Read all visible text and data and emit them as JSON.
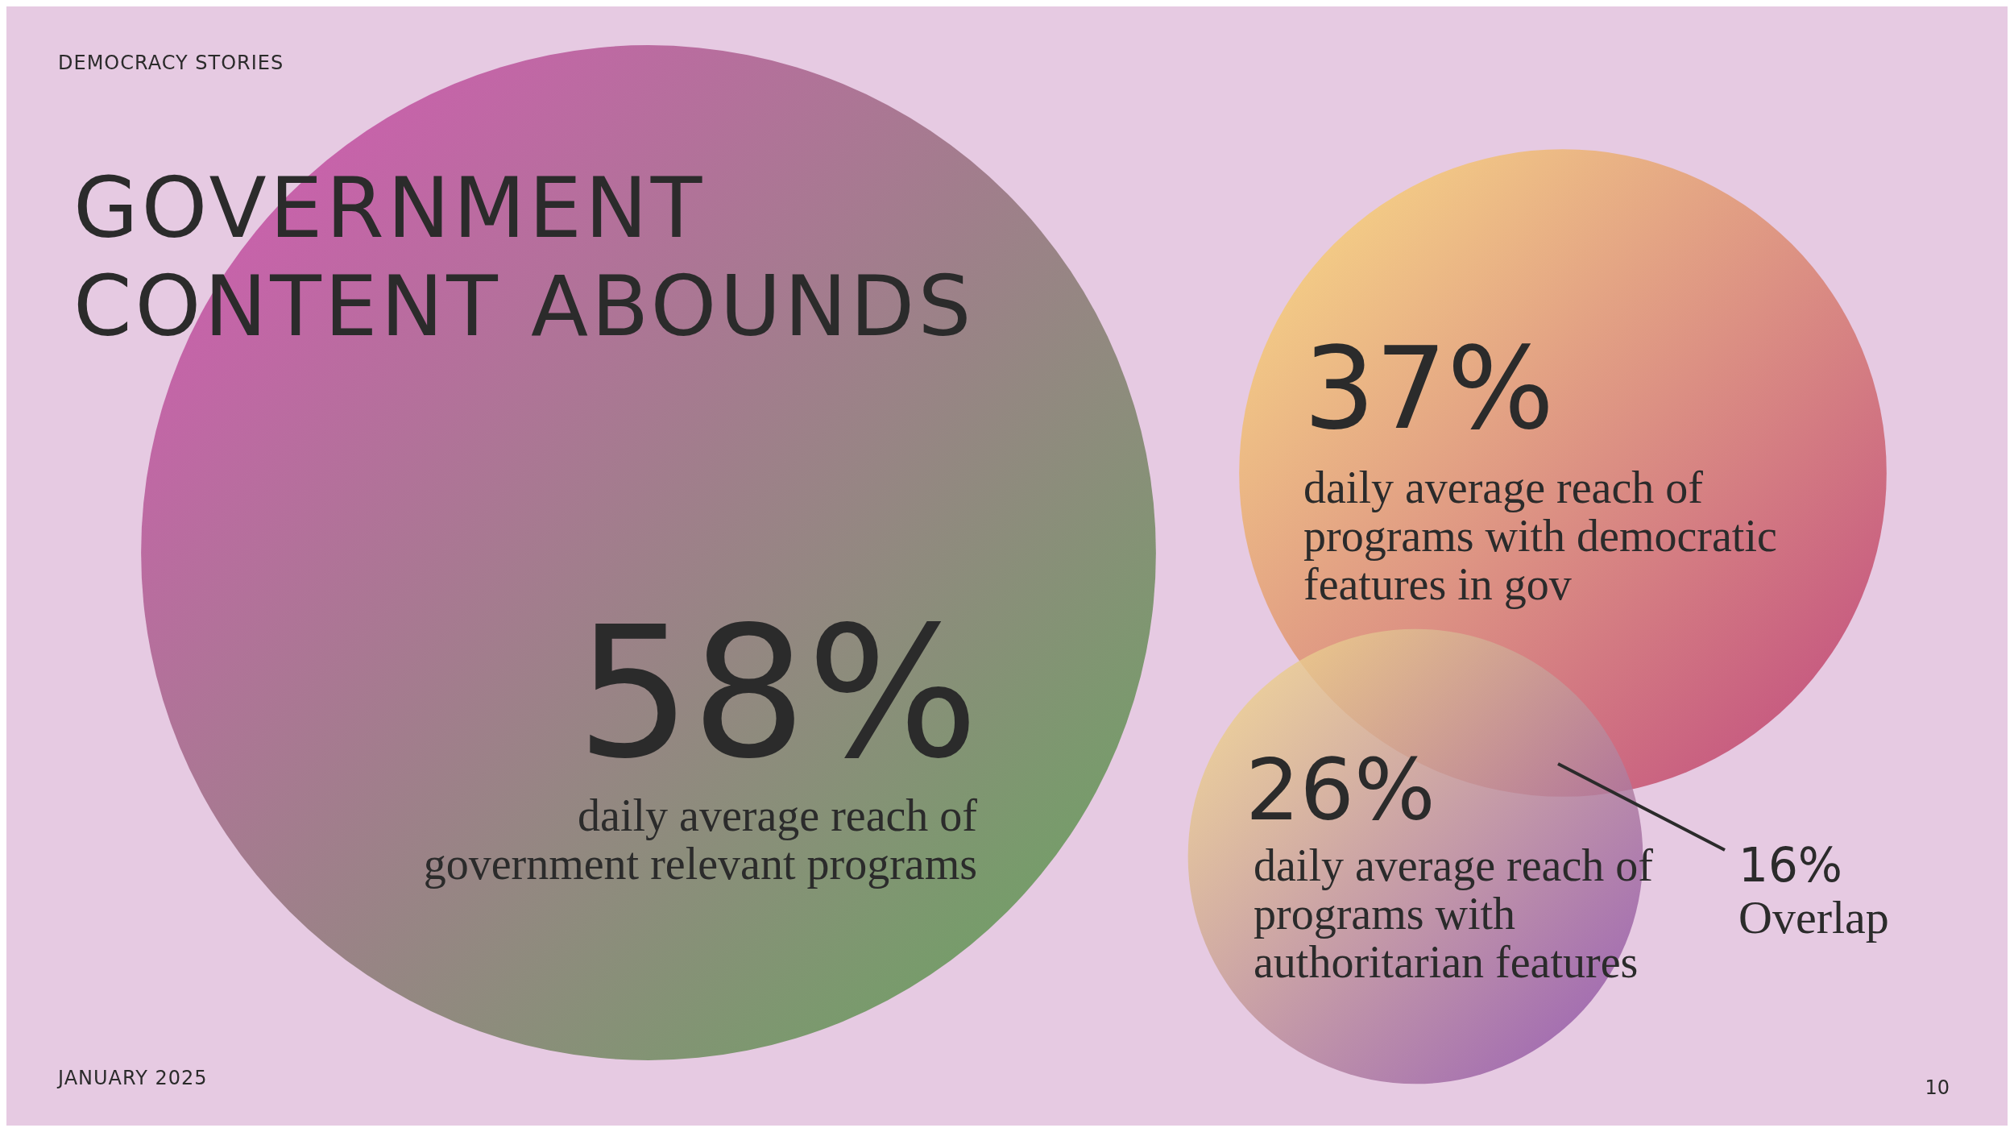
{
  "chart_data": {
    "type": "other",
    "title": "GOVERNMENT\nCONTENT ABOUNDS",
    "categories": [
      "daily average reach of government relevant programs",
      "daily average reach of programs with democratic features in gov",
      "daily average reach of programs with authoritarian features"
    ],
    "values": [
      58,
      37,
      26
    ],
    "value_labels": [
      "58%",
      "37%",
      "26%"
    ],
    "colors": [
      "#6ca462",
      "#c24f80",
      "#8c4ea9"
    ],
    "annotations": [
      "DEMOCRACY STORIES",
      "16%\nOverlap",
      "JANUARY 2025",
      "10"
    ]
  }
}
